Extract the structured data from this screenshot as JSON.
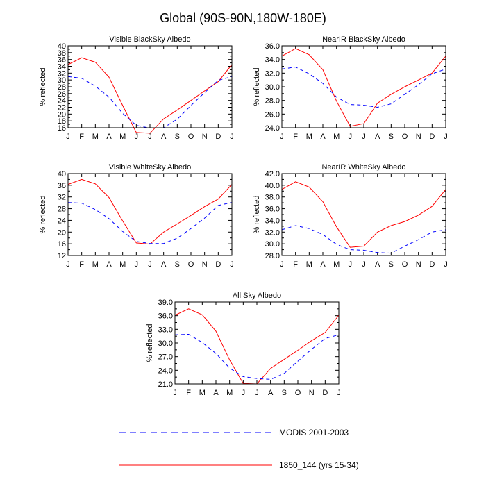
{
  "figure": {
    "title": "Global (90S-90N,180W-180E)",
    "months": [
      "J",
      "F",
      "M",
      "A",
      "M",
      "J",
      "J",
      "A",
      "S",
      "O",
      "N",
      "D",
      "J"
    ],
    "ylabel": "% reflected",
    "colors": {
      "model": "#ff0000",
      "obs": "#0000ff",
      "axis": "#000000"
    }
  },
  "legend": [
    {
      "name": "MODIS 2001-2003",
      "style": "dashed",
      "color": "#0000ff"
    },
    {
      "name": "1850_144 (yrs 15-34)",
      "style": "solid",
      "color": "#ff0000"
    }
  ],
  "chart_data": [
    {
      "type": "line",
      "title": "Visible BlackSky Albedo",
      "ylabel": "% reflected",
      "ylim": [
        16,
        40
      ],
      "yticks": [
        "16",
        "18",
        "20",
        "22",
        "24",
        "26",
        "28",
        "30",
        "32",
        "34",
        "36",
        "38",
        "40"
      ],
      "x": [
        "J",
        "F",
        "M",
        "A",
        "M",
        "J",
        "J",
        "A",
        "S",
        "O",
        "N",
        "D",
        "J"
      ],
      "series": [
        {
          "name": "1850_144 (yrs 15-34)",
          "style": "solid",
          "values": [
            34.5,
            36.5,
            35.2,
            30.8,
            22.5,
            14.6,
            14.4,
            18.6,
            21.2,
            24.0,
            26.8,
            29.5,
            34.5
          ]
        },
        {
          "name": "MODIS 2001-2003",
          "style": "dashed",
          "values": [
            31.0,
            30.5,
            28.2,
            25.0,
            20.2,
            16.7,
            15.9,
            16.0,
            18.5,
            22.5,
            26.3,
            29.9,
            31.0
          ]
        }
      ]
    },
    {
      "type": "line",
      "title": "NearIR BlackSky Albedo",
      "ylabel": "% reflected",
      "ylim": [
        24,
        36
      ],
      "yticks": [
        "24.0",
        "26.0",
        "28.0",
        "30.0",
        "32.0",
        "34.0",
        "36.0"
      ],
      "x": [
        "J",
        "F",
        "M",
        "A",
        "M",
        "J",
        "J",
        "A",
        "S",
        "O",
        "N",
        "D",
        "J"
      ],
      "series": [
        {
          "name": "1850_144 (yrs 15-34)",
          "style": "solid",
          "values": [
            34.5,
            35.6,
            34.7,
            32.5,
            27.9,
            24.2,
            24.6,
            27.6,
            28.9,
            30.0,
            31.0,
            32.0,
            34.5
          ]
        },
        {
          "name": "MODIS 2001-2003",
          "style": "dashed",
          "values": [
            32.6,
            32.9,
            31.9,
            30.5,
            28.5,
            27.4,
            27.3,
            27.0,
            27.5,
            28.9,
            30.3,
            31.9,
            32.6
          ]
        }
      ]
    },
    {
      "type": "line",
      "title": "Visible WhiteSky Albedo",
      "ylabel": "% reflected",
      "ylim": [
        12,
        40
      ],
      "yticks": [
        "12",
        "16",
        "20",
        "24",
        "28",
        "32",
        "36",
        "40"
      ],
      "x": [
        "J",
        "F",
        "M",
        "A",
        "M",
        "J",
        "J",
        "A",
        "S",
        "O",
        "N",
        "D",
        "J"
      ],
      "series": [
        {
          "name": "1850_144 (yrs 15-34)",
          "style": "solid",
          "values": [
            36.3,
            38.0,
            36.5,
            31.8,
            23.8,
            16.3,
            15.9,
            20.0,
            22.8,
            25.7,
            28.7,
            31.3,
            36.3
          ]
        },
        {
          "name": "MODIS 2001-2003",
          "style": "dashed",
          "values": [
            30.1,
            29.9,
            27.7,
            24.6,
            20.2,
            16.8,
            16.1,
            16.1,
            17.9,
            21.2,
            24.8,
            29.1,
            30.1
          ]
        }
      ]
    },
    {
      "type": "line",
      "title": "NearIR WhiteSky Albedo",
      "ylabel": "% reflected",
      "ylim": [
        28,
        42
      ],
      "yticks": [
        "28.0",
        "30.0",
        "32.0",
        "34.0",
        "36.0",
        "38.0",
        "40.0",
        "42.0"
      ],
      "x": [
        "J",
        "F",
        "M",
        "A",
        "M",
        "J",
        "J",
        "A",
        "S",
        "O",
        "N",
        "D",
        "J"
      ],
      "series": [
        {
          "name": "1850_144 (yrs 15-34)",
          "style": "solid",
          "values": [
            39.3,
            40.6,
            39.7,
            37.2,
            32.9,
            29.4,
            29.6,
            32.0,
            33.1,
            33.8,
            34.9,
            36.4,
            39.3
          ]
        },
        {
          "name": "MODIS 2001-2003",
          "style": "dashed",
          "values": [
            32.4,
            33.1,
            32.6,
            31.6,
            29.9,
            29.0,
            28.9,
            28.5,
            28.4,
            29.6,
            30.7,
            32.0,
            32.4
          ]
        }
      ]
    },
    {
      "type": "line",
      "title": "All Sky Albedo",
      "ylabel": "% reflected",
      "ylim": [
        21,
        39
      ],
      "yticks": [
        "21.0",
        "24.0",
        "27.0",
        "30.0",
        "33.0",
        "36.0",
        "39.0"
      ],
      "x": [
        "J",
        "F",
        "M",
        "A",
        "M",
        "J",
        "J",
        "A",
        "S",
        "O",
        "N",
        "D",
        "J"
      ],
      "series": [
        {
          "name": "1850_144 (yrs 15-34)",
          "style": "solid",
          "values": [
            36.1,
            37.5,
            36.2,
            32.6,
            26.3,
            21.1,
            21.0,
            24.4,
            26.4,
            28.4,
            30.5,
            32.3,
            36.1
          ]
        },
        {
          "name": "MODIS 2001-2003",
          "style": "dashed",
          "values": [
            31.8,
            31.9,
            30.1,
            27.7,
            24.5,
            22.6,
            22.2,
            22.0,
            23.3,
            26.0,
            28.6,
            31.0,
            31.8
          ]
        }
      ]
    }
  ]
}
